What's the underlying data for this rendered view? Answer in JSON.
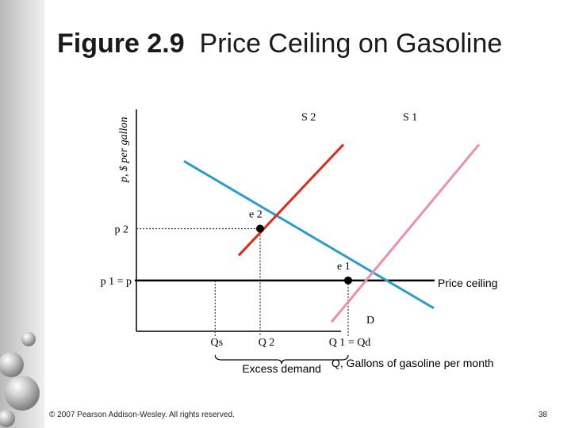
{
  "slide": {
    "title_number": "Figure 2.9",
    "title_text": "Price Ceiling on Gasoline",
    "copyright": "© 2007 Pearson Addison-Wesley. All rights reserved.",
    "page_number": "38"
  },
  "colors": {
    "demand": "#2a9ec9",
    "supply_s1": "#ec8fae",
    "supply_s2": "#dd2a1b",
    "ceiling": "#000000",
    "guides": "#333333"
  },
  "chart_data": {
    "type": "line",
    "ylabel": "p, $ per gallon",
    "xlabel": "Q, Gallons of gasoline per month",
    "series": [
      {
        "name": "D",
        "points": [
          [
            2,
            9.2
          ],
          [
            12.5,
            1.25
          ]
        ]
      },
      {
        "name": "S 1",
        "points": [
          [
            8.2,
            0.5
          ],
          [
            14.4,
            10.1
          ]
        ]
      },
      {
        "name": "S 2",
        "points": [
          [
            4.3,
            4.1
          ],
          [
            8.7,
            10.1
          ]
        ]
      }
    ],
    "points": [
      {
        "name": "e 2",
        "x": 5.2,
        "y": 5.55
      },
      {
        "name": "e 1",
        "x": 8.9,
        "y": 2.75
      }
    ],
    "ceiling": {
      "label": "Price ceiling",
      "y": 2.75
    },
    "price_labels": {
      "p2": "p 2",
      "p1": "p 1 = p"
    },
    "quantity_labels": {
      "qs": "Qs",
      "q2": "Q 2",
      "q1": "Q 1 = Qd"
    },
    "bracket_label": "Excess demand",
    "xlim": [
      0,
      16
    ],
    "ylim": [
      0,
      12
    ]
  }
}
